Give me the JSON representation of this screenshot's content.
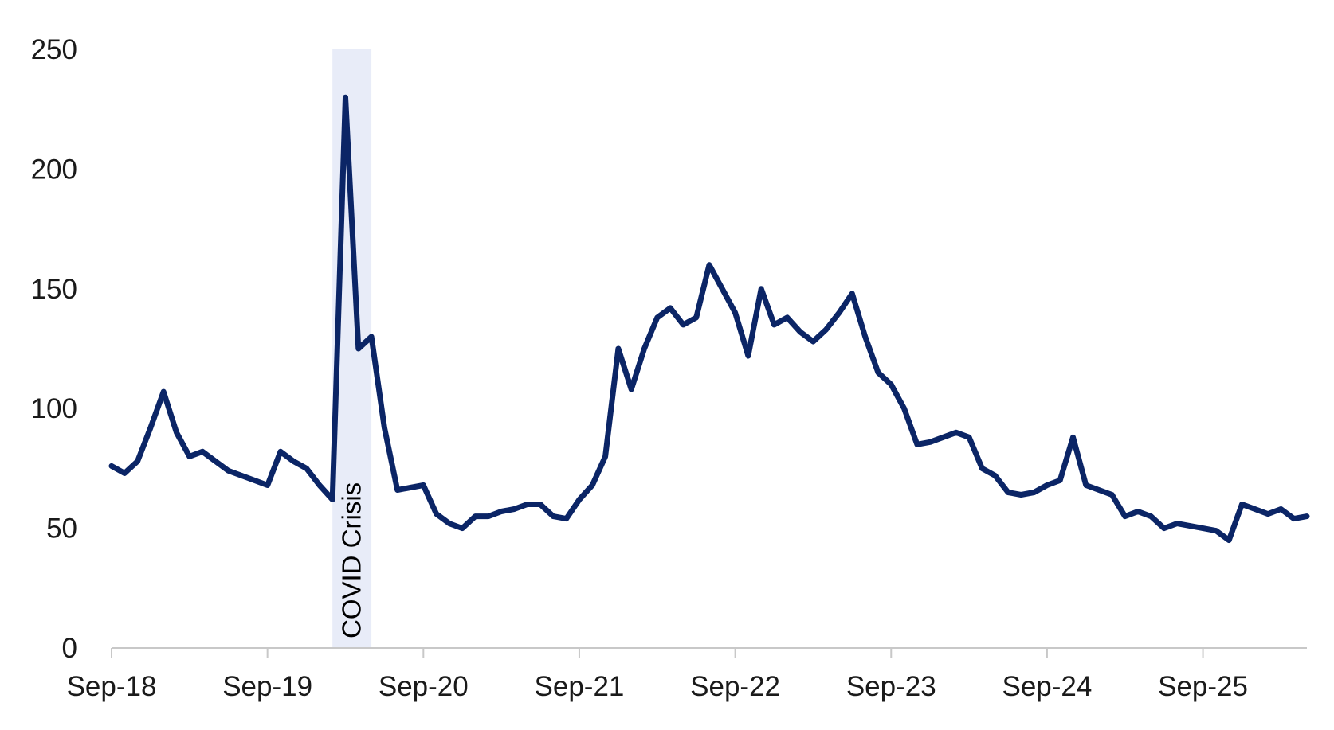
{
  "chart_data": {
    "type": "line",
    "title": "",
    "xlabel": "",
    "ylabel": "",
    "ylim": [
      0,
      250
    ],
    "xlim": [
      "2018-09",
      "2026-05"
    ],
    "grid": false,
    "legend": "none",
    "colors": {
      "line": "#0b2566",
      "shade": "#e8ecf8",
      "axis": "#c8c8c8"
    },
    "y_ticks": [
      "0",
      "50",
      "100",
      "150",
      "200",
      "250"
    ],
    "x_ticks": [
      {
        "label": "Sep-18",
        "date": "2018-09"
      },
      {
        "label": "Sep-19",
        "date": "2019-09"
      },
      {
        "label": "Sep-20",
        "date": "2020-09"
      },
      {
        "label": "Sep-21",
        "date": "2021-09"
      },
      {
        "label": "Sep-22",
        "date": "2022-09"
      },
      {
        "label": "Sep-23",
        "date": "2023-09"
      },
      {
        "label": "Sep-24",
        "date": "2024-09"
      },
      {
        "label": "Sep-25",
        "date": "2025-09"
      }
    ],
    "shaded_region": {
      "label": "COVID Crisis",
      "start": "2020-02",
      "end": "2020-05"
    },
    "series": [
      {
        "x": [
          "2018-09",
          "2018-10",
          "2018-11",
          "2018-12",
          "2019-01",
          "2019-02",
          "2019-03",
          "2019-04",
          "2019-05",
          "2019-06",
          "2019-07",
          "2019-08",
          "2019-09",
          "2019-10",
          "2019-11",
          "2019-12",
          "2020-01",
          "2020-02",
          "2020-03",
          "2020-04",
          "2020-05",
          "2020-06",
          "2020-07",
          "2020-08",
          "2020-09",
          "2020-10",
          "2020-11",
          "2020-12",
          "2021-01",
          "2021-02",
          "2021-03",
          "2021-04",
          "2021-05",
          "2021-06",
          "2021-07",
          "2021-08",
          "2021-09",
          "2021-10",
          "2021-11",
          "2021-12",
          "2022-01",
          "2022-02",
          "2022-03",
          "2022-04",
          "2022-05",
          "2022-06",
          "2022-07",
          "2022-08",
          "2022-09",
          "2022-10",
          "2022-11",
          "2022-12",
          "2023-01",
          "2023-02",
          "2023-03",
          "2023-04",
          "2023-05",
          "2023-06",
          "2023-07",
          "2023-08",
          "2023-09",
          "2023-10",
          "2023-11",
          "2023-12",
          "2024-01",
          "2024-02",
          "2024-03",
          "2024-04",
          "2024-05",
          "2024-06",
          "2024-07",
          "2024-08",
          "2024-09",
          "2024-10",
          "2024-11",
          "2024-12",
          "2025-01",
          "2025-02",
          "2025-03",
          "2025-04",
          "2025-05",
          "2025-06",
          "2025-07",
          "2025-08",
          "2025-09",
          "2025-10",
          "2025-11",
          "2025-12",
          "2026-01",
          "2026-02",
          "2026-03",
          "2026-04",
          "2026-05"
        ],
        "y": [
          76,
          73,
          78,
          92,
          107,
          90,
          80,
          82,
          78,
          74,
          72,
          70,
          68,
          82,
          78,
          75,
          68,
          62,
          230,
          125,
          130,
          92,
          66,
          67,
          68,
          56,
          52,
          50,
          55,
          55,
          57,
          58,
          60,
          60,
          55,
          54,
          62,
          68,
          80,
          125,
          108,
          125,
          138,
          142,
          135,
          138,
          160,
          150,
          140,
          122,
          150,
          135,
          138,
          132,
          128,
          133,
          140,
          148,
          130,
          115,
          110,
          100,
          85,
          86,
          88,
          90,
          88,
          75,
          72,
          65,
          64,
          65,
          68,
          70,
          88,
          68,
          66,
          64,
          55,
          57,
          55,
          50,
          52,
          51,
          50,
          49,
          45,
          60,
          58,
          56,
          58,
          54,
          55
        ]
      }
    ]
  }
}
